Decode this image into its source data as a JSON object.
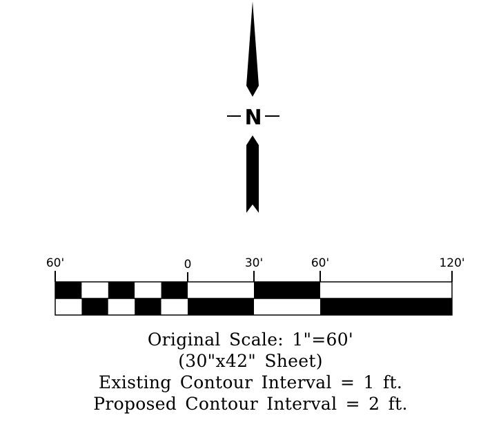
{
  "north_arrow": {
    "letter": "N",
    "icon": "north-arrow-icon"
  },
  "scale_bar": {
    "unit": "feet",
    "tick_labels": [
      "60'",
      "0",
      "30'",
      "60'",
      "120'"
    ],
    "tick_values": [
      -60,
      0,
      30,
      60,
      120
    ],
    "left_section_divisions": 5,
    "colors": {
      "fill": "#000000",
      "empty": "#ffffff",
      "stroke": "#000000"
    }
  },
  "notes": {
    "original_scale": "Original Scale: 1\"=60'",
    "sheet_size": "(30\"x42\" Sheet)",
    "existing_contour": "Existing Contour Interval = 1 ft.",
    "proposed_contour": "Proposed Contour Interval = 2 ft."
  }
}
